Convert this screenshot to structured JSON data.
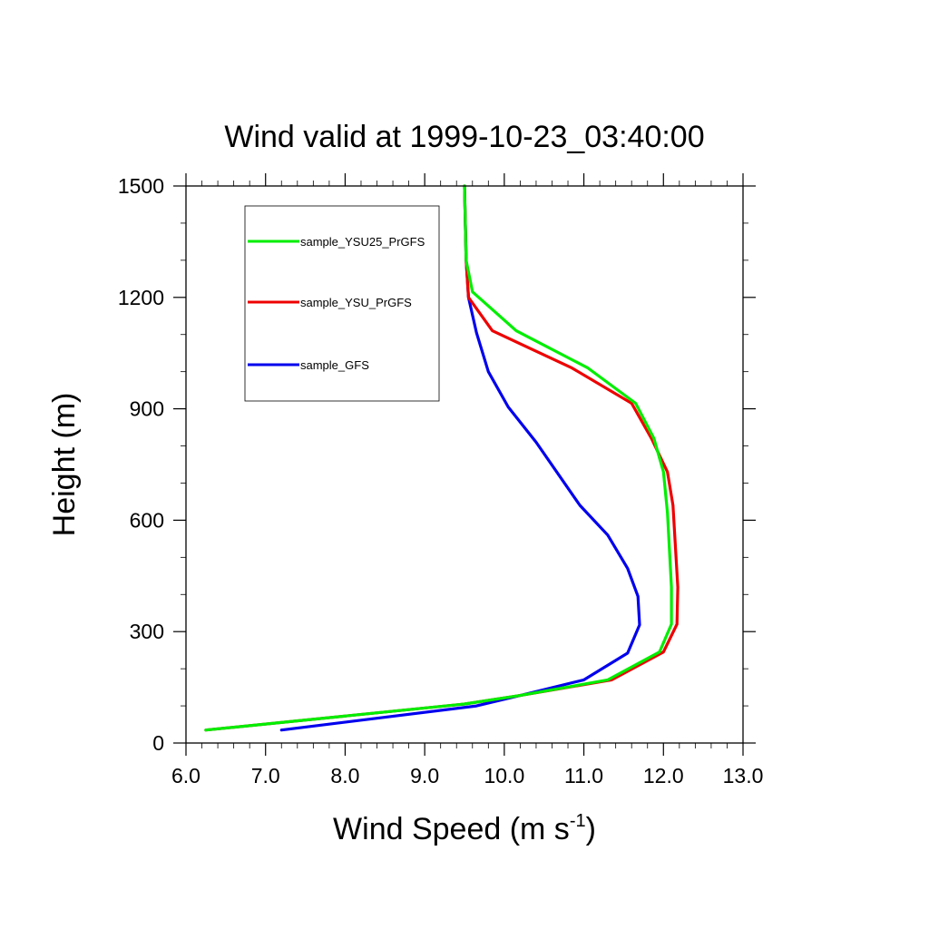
{
  "chart_data": {
    "type": "line",
    "title": "Wind valid at 1999-10-23_03:40:00",
    "xlabel": "Wind Speed (m s",
    "xlabel_superscript": "-1",
    "xlabel_suffix": ")",
    "ylabel": "Height (m)",
    "xlim": [
      6.0,
      13.0
    ],
    "ylim": [
      0,
      1500
    ],
    "x_major_ticks": [
      6.0,
      7.0,
      8.0,
      9.0,
      10.0,
      11.0,
      12.0,
      13.0
    ],
    "x_tick_labels": [
      "6.0",
      "7.0",
      "8.0",
      "9.0",
      "10.0",
      "11.0",
      "12.0",
      "13.0"
    ],
    "y_major_ticks": [
      0,
      300,
      600,
      900,
      1200,
      1500
    ],
    "y_tick_labels": [
      "0",
      "300",
      "600",
      "900",
      "1200",
      "1500"
    ],
    "grid": false,
    "legend_position": "top-left",
    "series": [
      {
        "name": "sample_YSU25_PrGFS",
        "color": "#00ee00",
        "points": [
          [
            6.25,
            35
          ],
          [
            9.5,
            105
          ],
          [
            10.2,
            128
          ],
          [
            11.3,
            170
          ],
          [
            11.95,
            245
          ],
          [
            12.1,
            320
          ],
          [
            12.1,
            420
          ],
          [
            12.05,
            620
          ],
          [
            12.0,
            730
          ],
          [
            11.88,
            820
          ],
          [
            11.65,
            915
          ],
          [
            11.05,
            1010
          ],
          [
            10.15,
            1110
          ],
          [
            9.6,
            1215
          ],
          [
            9.52,
            1300
          ],
          [
            9.5,
            1500
          ]
        ]
      },
      {
        "name": "sample_YSU_PrGFS",
        "color": "#ee0000",
        "points": [
          [
            6.25,
            35
          ],
          [
            9.5,
            105
          ],
          [
            10.2,
            128
          ],
          [
            11.35,
            170
          ],
          [
            12.0,
            245
          ],
          [
            12.17,
            320
          ],
          [
            12.18,
            420
          ],
          [
            12.12,
            640
          ],
          [
            12.05,
            730
          ],
          [
            11.85,
            820
          ],
          [
            11.6,
            915
          ],
          [
            10.85,
            1010
          ],
          [
            9.85,
            1110
          ],
          [
            9.55,
            1200
          ],
          [
            9.52,
            1300
          ],
          [
            9.5,
            1500
          ]
        ]
      },
      {
        "name": "sample_GFS",
        "color": "#0000ee",
        "points": [
          [
            7.2,
            35
          ],
          [
            9.65,
            100
          ],
          [
            10.2,
            128
          ],
          [
            11.0,
            170
          ],
          [
            11.55,
            242
          ],
          [
            11.7,
            318
          ],
          [
            11.68,
            395
          ],
          [
            11.55,
            470
          ],
          [
            11.3,
            560
          ],
          [
            10.95,
            640
          ],
          [
            10.4,
            810
          ],
          [
            10.05,
            905
          ],
          [
            9.8,
            1000
          ],
          [
            9.65,
            1105
          ],
          [
            9.55,
            1200
          ],
          [
            9.52,
            1300
          ],
          [
            9.5,
            1500
          ]
        ]
      }
    ]
  }
}
